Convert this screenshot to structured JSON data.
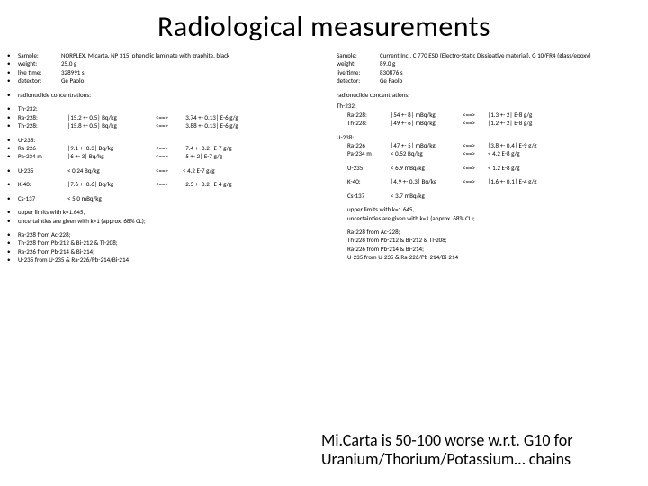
{
  "title": "Radiological measurements",
  "left": {
    "meta": {
      "sample_label": "Sample:",
      "sample_value": "NORPLEX, Micarta, NP 315, phenolic laminate with graphite, black",
      "weight_label": "weight:",
      "weight_value": "25.0 g",
      "livetime_label": "live time:",
      "livetime_value": "328991 s",
      "detector_label": "detector:",
      "detector_value": "Ge Paolo"
    },
    "rad_hdr": "radionuclide concentrations:",
    "th232_hdr": "Th-232:",
    "th232_rows": [
      {
        "n": "Ra-228:",
        "a": "|15.2 +- 0.5| Bq/kg",
        "arr": "<==>",
        "b": "|3.74 +- 0.13| E-6 g/g"
      },
      {
        "n": "Th-228:",
        "a": "|15.8 +- 0.5| Bq/kg",
        "arr": "<==>",
        "b": "|3.88 +- 0.13| E-6 g/g"
      }
    ],
    "u238_hdr": "U-238:",
    "u238_rows": [
      {
        "n": "Ra-226",
        "a": "|9.1 +- 0.3| Bq/kg",
        "arr": "<==>",
        "b": "|7.4 +- 0.2| E-7 g/g"
      },
      {
        "n": "Pa-234 m",
        "a": "|6 +- 3| Bq/kg",
        "arr": "<==>",
        "b": "|5 +- 2| E-7 g/g"
      }
    ],
    "single_rows": [
      {
        "n": "U-235",
        "a": "< 0.24 Bq/kg",
        "arr": "<==>",
        "b": "< 4.2 E-7 g/g"
      },
      {
        "n": "K-40:",
        "a": "|7.6 +- 0.6| Bq/kg",
        "arr": "<==>",
        "b": "|2.5 +- 0.2| E-4 g/g"
      },
      {
        "n": "Cs-137",
        "a": "< 5.0 mBq/kg",
        "arr": "",
        "b": ""
      }
    ],
    "notes": [
      "upper limits with k=1.645,",
      "uncertainties are given with k=1 (approx. 68% CL);"
    ],
    "footnotes": [
      "Ra-228 from Ac-228;",
      "Th-228 from Pb-212 & Bi-212 & Tl-208;",
      "Ra-226 from Pb-214 & Bi-214;",
      "U-235 from U-235 & Ra-226/Pb-214/Bi-214"
    ]
  },
  "right": {
    "meta": {
      "sample_label": "Sample:",
      "sample_value": "Current Inc., C 770 ESD (Electro-Static Dissipative material), G 10/FR4 (glass/epoxy)",
      "weight_label": "weight:",
      "weight_value": "89.0 g",
      "livetime_label": "live time:",
      "livetime_value": "830876 s",
      "detector_label": "detector:",
      "detector_value": "Ge Paolo"
    },
    "rad_hdr": "radionuclide concentrations:",
    "th232_hdr": "Th-232:",
    "th232_rows": [
      {
        "n": "Ra-228:",
        "a": "|54 +- 8| mBq/kg",
        "arr": "<==>",
        "b": "|1.3 +- 2| E-8 g/g"
      },
      {
        "n": "Th-228:",
        "a": "|49 +- 6| mBq/kg",
        "arr": "<==>",
        "b": "|1.2 +- 2| E-8 g/g"
      }
    ],
    "u238_hdr": "U-238:",
    "u238_rows": [
      {
        "n": "Ra-226",
        "a": "|47 +- 5| mBq/kg",
        "arr": "<==>",
        "b": "|3.8 +- 0.4| E-9 g/g"
      },
      {
        "n": "Pa-234 m",
        "a": "< 0.52 Bq/kg",
        "arr": "<==>",
        "b": "< 4.2 E-8 g/g"
      }
    ],
    "single_rows": [
      {
        "n": "U-235",
        "a": "< 6.9 mBq/kg",
        "arr": "<==>",
        "b": "< 1.2 E-8 g/g"
      },
      {
        "n": "K-40:",
        "a": "|4.9 +- 0.3| Bq/kg",
        "arr": "<==>",
        "b": "|1.6 +- 0.1| E-4 g/g"
      },
      {
        "n": "Cs-137",
        "a": "< 3.7 mBq/kg",
        "arr": "",
        "b": ""
      }
    ],
    "notes": [
      "upper limits with k=1.645,",
      "uncertainties are given with k=1 (approx. 68% CL);"
    ],
    "footnotes": [
      "Ra-228 from Ac-228;",
      "Th-228 from Pb-212 & Bi-212 & Tl-208;",
      "Ra-226 from Pb-214 & Bi-214;",
      "U-235 from U-235 & Ra-226/Pb-214/Bi-214"
    ]
  },
  "callout": "Mi.Carta is 50-100 worse w.r.t. G10 for Uranium/Thorium/Potassium… chains"
}
